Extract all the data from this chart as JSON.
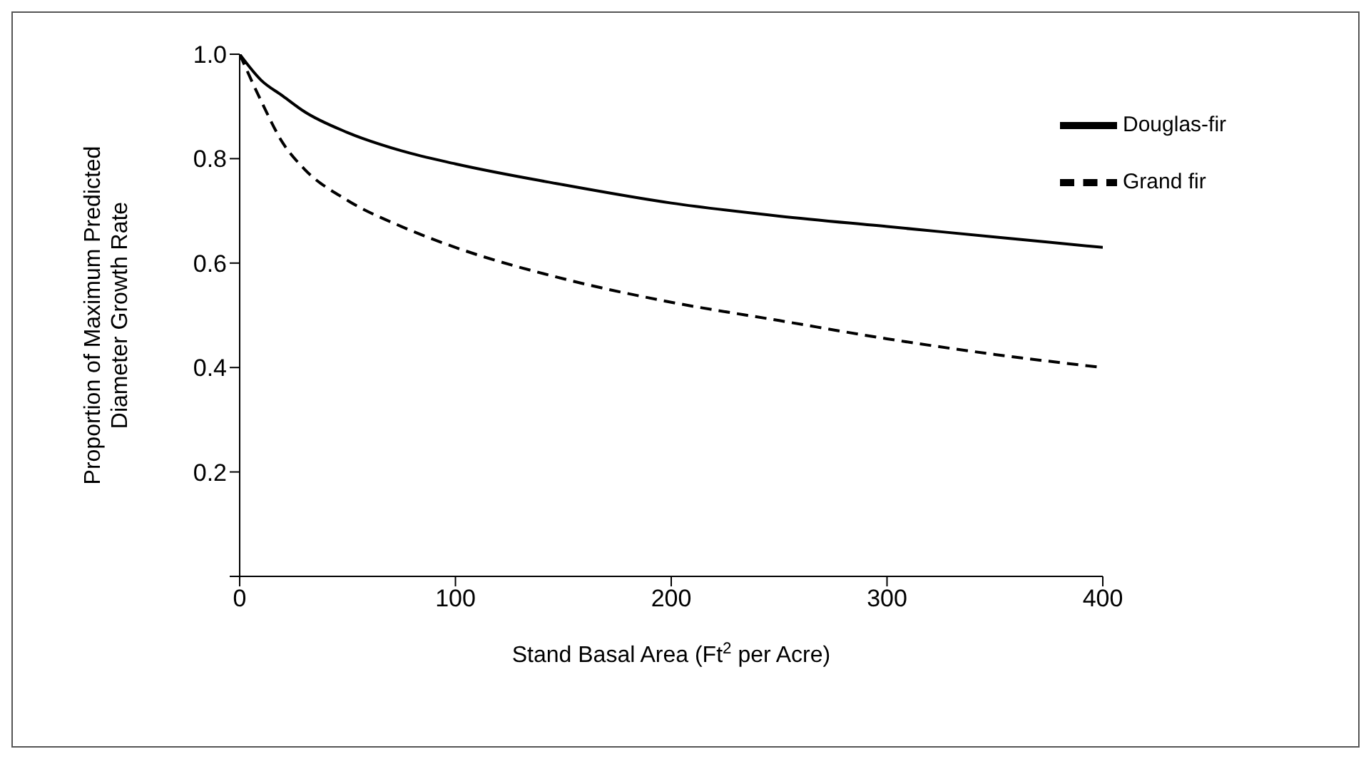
{
  "chart_data": {
    "type": "line",
    "xlabel": "Stand Basal Area (Ft$^{2}$ per Acre)",
    "ylabel": "Proportion of Maximum Predicted Diameter Growth Rate",
    "x": [
      0,
      10,
      20,
      30,
      50,
      75,
      100,
      150,
      200,
      250,
      300,
      350,
      400
    ],
    "series": [
      {
        "name": "Douglas-fir",
        "color": "#000000",
        "line_style": "solid",
        "values": [
          1.0,
          0.95,
          0.92,
          0.89,
          0.85,
          0.815,
          0.79,
          0.75,
          0.715,
          0.69,
          0.67,
          0.65,
          0.63
        ]
      },
      {
        "name": "Grand fir",
        "color": "#000000",
        "line_style": "dashed",
        "values": [
          1.0,
          0.91,
          0.83,
          0.78,
          0.72,
          0.67,
          0.63,
          0.57,
          0.525,
          0.49,
          0.455,
          0.425,
          0.4
        ]
      }
    ],
    "xlim": [
      0,
      400
    ],
    "xticks": [
      0,
      100,
      200,
      300,
      400
    ],
    "ylim": [
      0,
      1.0
    ],
    "yticks": [
      {
        "value": 0,
        "label": null
      },
      0.2,
      0.4,
      0.6,
      0.8,
      {
        "value": 1.0,
        "label": "1.0"
      }
    ],
    "grid": false,
    "legend": "top right",
    "marker": "none"
  }
}
